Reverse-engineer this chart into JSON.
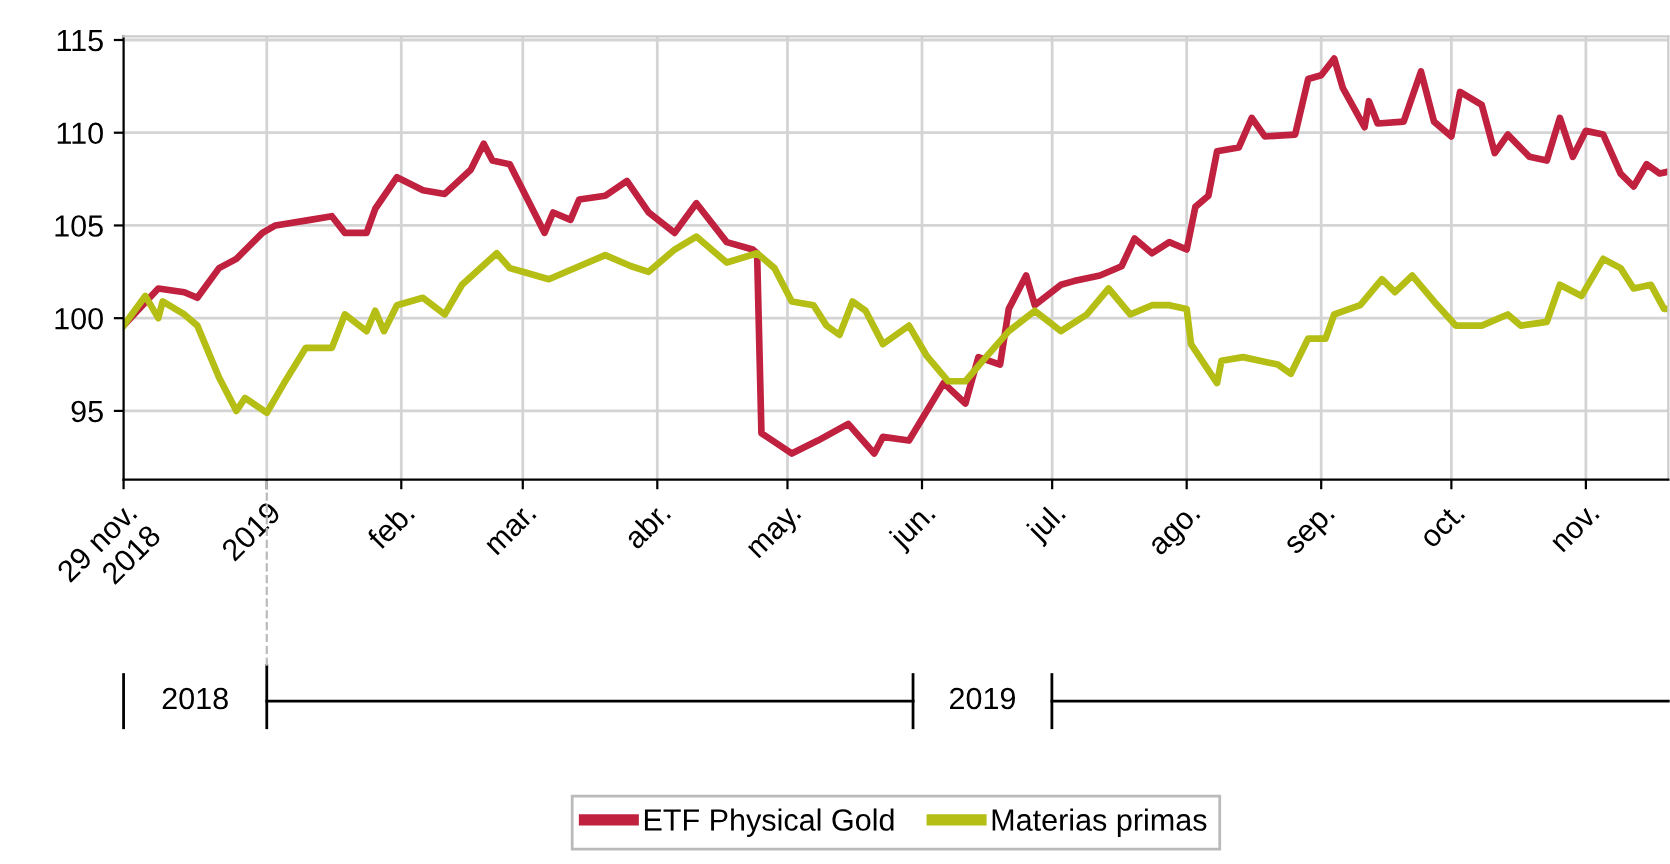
{
  "chart_data": {
    "type": "line",
    "ylim": [
      91.3,
      115.2
    ],
    "yticks": [
      95,
      100,
      105,
      110,
      115
    ],
    "xlim": [
      "2018-11-29",
      "2019-11-20"
    ],
    "xticks": [
      {
        "value": "2018-11-29",
        "label": "29 nov.\n2018"
      },
      {
        "value": "2019-01-01",
        "label": "2019"
      },
      {
        "value": "2019-02-01",
        "label": "feb."
      },
      {
        "value": "2019-03-01",
        "label": "mar."
      },
      {
        "value": "2019-04-01",
        "label": "abr."
      },
      {
        "value": "2019-05-01",
        "label": "may."
      },
      {
        "value": "2019-06-01",
        "label": "jun."
      },
      {
        "value": "2019-07-01",
        "label": "jul."
      },
      {
        "value": "2019-08-01",
        "label": "ago."
      },
      {
        "value": "2019-09-01",
        "label": "sep."
      },
      {
        "value": "2019-10-01",
        "label": "oct."
      },
      {
        "value": "2019-11-01",
        "label": "nov."
      }
    ],
    "grid": true,
    "legend": "bottom",
    "marker": "none",
    "line_style": "solid",
    "annotations": [
      "2018",
      "2019"
    ],
    "series": [
      {
        "name": "ETF Physical Gold",
        "color": "#c0213f",
        "x": [
          "2018-11-29",
          "2018-12-07",
          "2018-12-13",
          "2018-12-16",
          "2018-12-21",
          "2018-12-25",
          "2018-12-31",
          "2019-01-03",
          "2019-01-11",
          "2019-01-16",
          "2019-01-19",
          "2019-01-24",
          "2019-01-26",
          "2019-01-31",
          "2019-02-06",
          "2019-02-11",
          "2019-02-17",
          "2019-02-20",
          "2019-02-22",
          "2019-02-26",
          "2019-03-06",
          "2019-03-08",
          "2019-03-12",
          "2019-03-14",
          "2019-03-20",
          "2019-03-25",
          "2019-03-30",
          "2019-04-05",
          "2019-04-10",
          "2019-04-17",
          "2019-04-23",
          "2019-04-24",
          "2019-04-25",
          "2019-05-02",
          "2019-05-08",
          "2019-05-15",
          "2019-05-21",
          "2019-05-23",
          "2019-05-29",
          "2019-06-06",
          "2019-06-11",
          "2019-06-14",
          "2019-06-19",
          "2019-06-21",
          "2019-06-25",
          "2019-06-27",
          "2019-07-03",
          "2019-07-06",
          "2019-07-12",
          "2019-07-17",
          "2019-07-20",
          "2019-07-24",
          "2019-07-28",
          "2019-08-01",
          "2019-08-03",
          "2019-08-06",
          "2019-08-08",
          "2019-08-13",
          "2019-08-16",
          "2019-08-19",
          "2019-08-26",
          "2019-08-29",
          "2019-09-01",
          "2019-09-04",
          "2019-09-06",
          "2019-09-11",
          "2019-09-12",
          "2019-09-14",
          "2019-09-20",
          "2019-09-24",
          "2019-09-27",
          "2019-10-01",
          "2019-10-03",
          "2019-10-08",
          "2019-10-11",
          "2019-10-14",
          "2019-10-19",
          "2019-10-23",
          "2019-10-26",
          "2019-10-29",
          "2019-11-01",
          "2019-11-05",
          "2019-11-09",
          "2019-11-12",
          "2019-11-15",
          "2019-11-18",
          "2019-11-20"
        ],
        "values": [
          99.6,
          101.6,
          101.4,
          101.1,
          102.7,
          103.2,
          104.6,
          105.0,
          105.3,
          105.5,
          104.6,
          104.6,
          105.9,
          107.6,
          106.9,
          106.7,
          108.0,
          109.4,
          108.5,
          108.3,
          104.6,
          105.7,
          105.3,
          106.4,
          106.6,
          107.4,
          105.7,
          104.6,
          106.2,
          104.1,
          103.7,
          103.5,
          93.8,
          92.7,
          93.4,
          94.3,
          92.7,
          93.6,
          93.4,
          96.5,
          95.4,
          97.9,
          97.5,
          100.5,
          102.3,
          100.7,
          101.8,
          102.0,
          102.3,
          102.8,
          104.3,
          103.5,
          104.1,
          103.7,
          106.0,
          106.6,
          109.0,
          109.2,
          110.8,
          109.8,
          109.9,
          112.9,
          113.1,
          114.0,
          112.4,
          110.3,
          111.7,
          110.5,
          110.6,
          113.3,
          110.6,
          109.8,
          112.2,
          111.5,
          108.9,
          109.9,
          108.7,
          108.5,
          110.8,
          108.7,
          110.1,
          109.9,
          107.8,
          107.1,
          108.3,
          107.8,
          107.9
        ]
      },
      {
        "name": "Materias primas",
        "color": "#b4be14",
        "x": [
          "2018-11-29",
          "2018-12-04",
          "2018-12-07",
          "2018-12-08",
          "2018-12-13",
          "2018-12-16",
          "2018-12-21",
          "2018-12-25",
          "2018-12-27",
          "2019-01-01",
          "2019-01-05",
          "2019-01-10",
          "2019-01-16",
          "2019-01-19",
          "2019-01-24",
          "2019-01-26",
          "2019-01-28",
          "2019-01-31",
          "2019-02-06",
          "2019-02-11",
          "2019-02-15",
          "2019-02-23",
          "2019-02-26",
          "2019-03-01",
          "2019-03-07",
          "2019-03-14",
          "2019-03-20",
          "2019-03-26",
          "2019-03-30",
          "2019-04-05",
          "2019-04-10",
          "2019-04-17",
          "2019-04-24",
          "2019-04-28",
          "2019-05-02",
          "2019-05-07",
          "2019-05-10",
          "2019-05-13",
          "2019-05-16",
          "2019-05-19",
          "2019-05-23",
          "2019-05-29",
          "2019-06-02",
          "2019-06-07",
          "2019-06-11",
          "2019-06-15",
          "2019-06-21",
          "2019-06-27",
          "2019-07-03",
          "2019-07-09",
          "2019-07-14",
          "2019-07-19",
          "2019-07-24",
          "2019-07-28",
          "2019-08-01",
          "2019-08-02",
          "2019-08-08",
          "2019-08-09",
          "2019-08-14",
          "2019-08-22",
          "2019-08-25",
          "2019-08-29",
          "2019-09-02",
          "2019-09-04",
          "2019-09-10",
          "2019-09-15",
          "2019-09-18",
          "2019-09-22",
          "2019-09-27",
          "2019-10-02",
          "2019-10-08",
          "2019-10-14",
          "2019-10-17",
          "2019-10-23",
          "2019-10-26",
          "2019-10-31",
          "2019-11-05",
          "2019-11-09",
          "2019-11-12",
          "2019-11-16",
          "2019-11-19",
          "2019-11-20"
        ],
        "values": [
          99.6,
          101.2,
          100.0,
          100.9,
          100.2,
          99.6,
          96.8,
          95.0,
          95.7,
          94.9,
          96.5,
          98.4,
          98.4,
          100.2,
          99.3,
          100.4,
          99.3,
          100.7,
          101.1,
          100.2,
          101.8,
          103.5,
          102.7,
          102.5,
          102.1,
          102.8,
          103.4,
          102.8,
          102.5,
          103.7,
          104.4,
          103.0,
          103.5,
          102.7,
          100.9,
          100.7,
          99.6,
          99.1,
          100.9,
          100.4,
          98.6,
          99.6,
          98.0,
          96.6,
          96.6,
          97.7,
          99.3,
          100.4,
          99.3,
          100.2,
          101.6,
          100.2,
          100.7,
          100.7,
          100.5,
          98.6,
          96.5,
          97.7,
          97.9,
          97.5,
          97.0,
          98.9,
          98.9,
          100.2,
          100.7,
          102.1,
          101.4,
          102.3,
          100.9,
          99.6,
          99.6,
          100.2,
          99.6,
          99.8,
          101.8,
          101.2,
          103.2,
          102.7,
          101.6,
          101.8,
          100.5,
          100.5
        ]
      }
    ]
  }
}
